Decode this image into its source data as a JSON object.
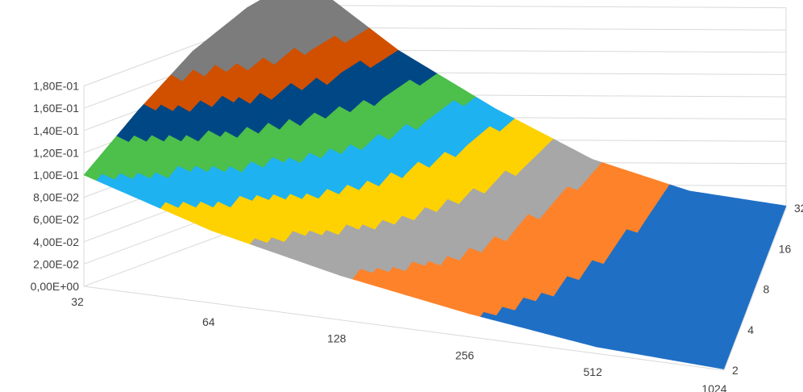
{
  "chart_data": {
    "type": "surface",
    "title": "",
    "x": [
      32,
      64,
      128,
      256,
      512,
      1024
    ],
    "x_tick_labels": [
      "32",
      "64",
      "128",
      "256",
      "512",
      "1024"
    ],
    "depth": [
      2,
      4,
      8,
      16,
      32
    ],
    "depth_tick_labels": [
      "2",
      "4",
      "8",
      "16",
      "32"
    ],
    "z_ticks": [
      0,
      0.02,
      0.04,
      0.06,
      0.08,
      0.1,
      0.12,
      0.14,
      0.16,
      0.18
    ],
    "z_tick_labels": [
      "0,00E+00",
      "2,00E-02",
      "4,00E-02",
      "6,00E-02",
      "8,00E-02",
      "1,00E-01",
      "1,20E-01",
      "1,40E-01",
      "1,60E-01",
      "1,80E-01"
    ],
    "zlim": [
      0,
      0.2
    ],
    "grid": true,
    "legend": "none",
    "band_size": 0.02,
    "band_colors": [
      "#1f6fc5",
      "#fd822a",
      "#a7a7a7",
      "#fed100",
      "#1eb2f1",
      "#4dbf4b",
      "#004785",
      "#d05000",
      "#7c7c7c"
    ],
    "values": [
      [
        0.1,
        0.065,
        0.04,
        0.021,
        0.006,
        0.001
      ],
      [
        0.14,
        0.095,
        0.06,
        0.031,
        0.009,
        0.001
      ],
      [
        0.175,
        0.12,
        0.075,
        0.037,
        0.012,
        0.002
      ],
      [
        0.196,
        0.135,
        0.085,
        0.041,
        0.014,
        0.002
      ],
      [
        0.206,
        0.14,
        0.088,
        0.043,
        0.015,
        0.002
      ]
    ]
  }
}
